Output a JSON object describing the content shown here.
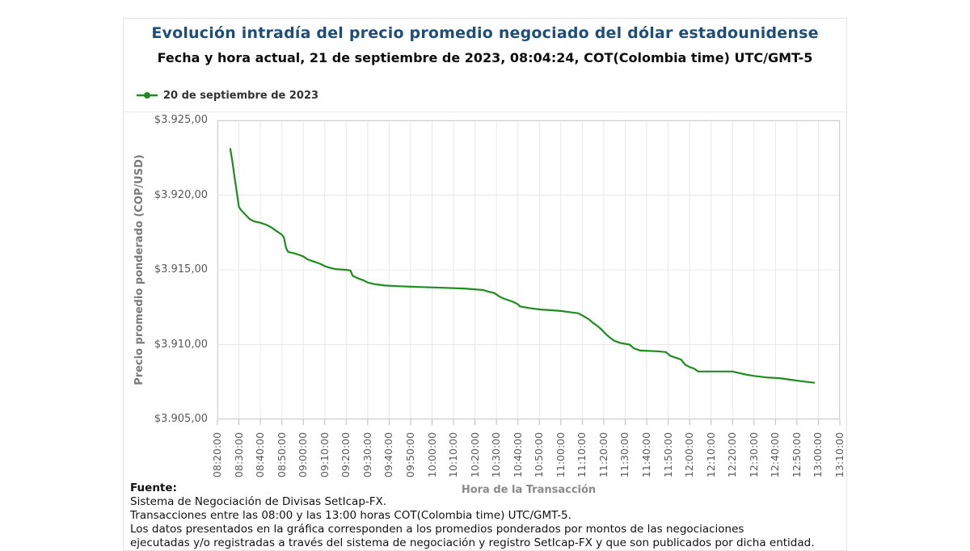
{
  "header": {
    "title": "Evolución intradía del precio promedio negociado del dólar estadounidense",
    "subtitle": "Fecha y hora actual, 21 de septiembre de 2023, 08:04:24, COT(Colombia time) UTC/GMT-5"
  },
  "legend": {
    "label": "20 de septiembre de 2023",
    "color": "#1e8c1e",
    "marker": "circle-on-line"
  },
  "chart_data": {
    "type": "line",
    "title": "Evolución intradía del precio promedio negociado del dólar estadounidense",
    "xlabel": "Hora de la Transacción",
    "ylabel": "Precio promedio ponderado (COP/USD)",
    "x_ticks": [
      "08:20:00",
      "08:30:00",
      "08:40:00",
      "08:50:00",
      "09:00:00",
      "09:10:00",
      "09:20:00",
      "09:30:00",
      "09:40:00",
      "09:50:00",
      "10:00:00",
      "10:10:00",
      "10:20:00",
      "10:30:00",
      "10:40:00",
      "10:50:00",
      "11:00:00",
      "11:10:00",
      "11:20:00",
      "11:30:00",
      "11:40:00",
      "11:50:00",
      "12:00:00",
      "12:10:00",
      "12:20:00",
      "12:30:00",
      "12:40:00",
      "12:50:00",
      "13:00:00",
      "13:10:00"
    ],
    "y_ticks": [
      "$3.925,00",
      "$3.920,00",
      "$3.915,00",
      "$3.910,00",
      "$3.905,00"
    ],
    "ylim": [
      3905,
      3925
    ],
    "xlim": [
      "08:20:00",
      "13:10:00"
    ],
    "grid": true,
    "legend_position": "top-left",
    "series": [
      {
        "name": "20 de septiembre de 2023",
        "color": "#1e8c1e",
        "points": [
          [
            "08:26",
            3923.1
          ],
          [
            "08:27",
            3922.2
          ],
          [
            "08:28",
            3921.2
          ],
          [
            "08:29",
            3920.2
          ],
          [
            "08:30",
            3919.2
          ],
          [
            "08:31",
            3919.0
          ],
          [
            "08:33",
            3918.7
          ],
          [
            "08:35",
            3918.4
          ],
          [
            "08:37",
            3918.25
          ],
          [
            "08:40",
            3918.15
          ],
          [
            "08:43",
            3918.0
          ],
          [
            "08:45",
            3917.85
          ],
          [
            "08:48",
            3917.55
          ],
          [
            "08:50",
            3917.35
          ],
          [
            "08:51",
            3917.15
          ],
          [
            "08:52",
            3916.45
          ],
          [
            "08:53",
            3916.2
          ],
          [
            "08:56",
            3916.1
          ],
          [
            "08:58",
            3916.0
          ],
          [
            "09:00",
            3915.9
          ],
          [
            "09:02",
            3915.7
          ],
          [
            "09:05",
            3915.55
          ],
          [
            "09:08",
            3915.4
          ],
          [
            "09:10",
            3915.25
          ],
          [
            "09:12",
            3915.15
          ],
          [
            "09:15",
            3915.05
          ],
          [
            "09:20",
            3915.0
          ],
          [
            "09:22",
            3914.95
          ],
          [
            "09:23",
            3914.6
          ],
          [
            "09:26",
            3914.4
          ],
          [
            "09:28",
            3914.3
          ],
          [
            "09:30",
            3914.15
          ],
          [
            "09:33",
            3914.05
          ],
          [
            "09:38",
            3913.95
          ],
          [
            "09:45",
            3913.9
          ],
          [
            "09:55",
            3913.85
          ],
          [
            "10:05",
            3913.8
          ],
          [
            "10:15",
            3913.75
          ],
          [
            "10:24",
            3913.65
          ],
          [
            "10:26",
            3913.55
          ],
          [
            "10:29",
            3913.45
          ],
          [
            "10:31",
            3913.25
          ],
          [
            "10:33",
            3913.1
          ],
          [
            "10:35",
            3913.0
          ],
          [
            "10:38",
            3912.85
          ],
          [
            "10:40",
            3912.7
          ],
          [
            "10:41",
            3912.55
          ],
          [
            "10:45",
            3912.45
          ],
          [
            "10:50",
            3912.35
          ],
          [
            "10:55",
            3912.3
          ],
          [
            "11:00",
            3912.25
          ],
          [
            "11:05",
            3912.15
          ],
          [
            "11:08",
            3912.1
          ],
          [
            "11:10",
            3911.95
          ],
          [
            "11:13",
            3911.7
          ],
          [
            "11:15",
            3911.45
          ],
          [
            "11:17",
            3911.25
          ],
          [
            "11:19",
            3911.0
          ],
          [
            "11:21",
            3910.7
          ],
          [
            "11:23",
            3910.45
          ],
          [
            "11:25",
            3910.25
          ],
          [
            "11:28",
            3910.1
          ],
          [
            "11:32",
            3910.0
          ],
          [
            "11:34",
            3909.75
          ],
          [
            "11:37",
            3909.6
          ],
          [
            "11:45",
            3909.55
          ],
          [
            "11:49",
            3909.5
          ],
          [
            "11:51",
            3909.25
          ],
          [
            "11:54",
            3909.1
          ],
          [
            "11:56",
            3909.0
          ],
          [
            "11:58",
            3908.65
          ],
          [
            "12:00",
            3908.5
          ],
          [
            "12:02",
            3908.4
          ],
          [
            "12:04",
            3908.2
          ],
          [
            "12:20",
            3908.2
          ],
          [
            "12:23",
            3908.1
          ],
          [
            "12:26",
            3908.0
          ],
          [
            "12:30",
            3907.9
          ],
          [
            "12:36",
            3907.8
          ],
          [
            "12:42",
            3907.75
          ],
          [
            "12:47",
            3907.65
          ],
          [
            "12:52",
            3907.55
          ],
          [
            "12:58",
            3907.45
          ]
        ]
      }
    ]
  },
  "colors": {
    "title": "#1f4e79",
    "line": "#1e8c1e",
    "grid": "#e8e8e8",
    "plot_border": "#cfcfcf",
    "tick_text": "#595959"
  },
  "footer": {
    "label": "Fuente:",
    "lines": [
      "Sistema de Negociación de Divisas SetIcap-FX.",
      "Transacciones entre las 08:00 y las 13:00 horas COT(Colombia time) UTC/GMT-5.",
      "Los datos presentados en la gráfica corresponden a los promedios ponderados por montos de las negociaciones",
      "ejecutadas y/o registradas a través del sistema de negociación y registro SetIcap-FX y que son publicados por dicha entidad."
    ]
  }
}
